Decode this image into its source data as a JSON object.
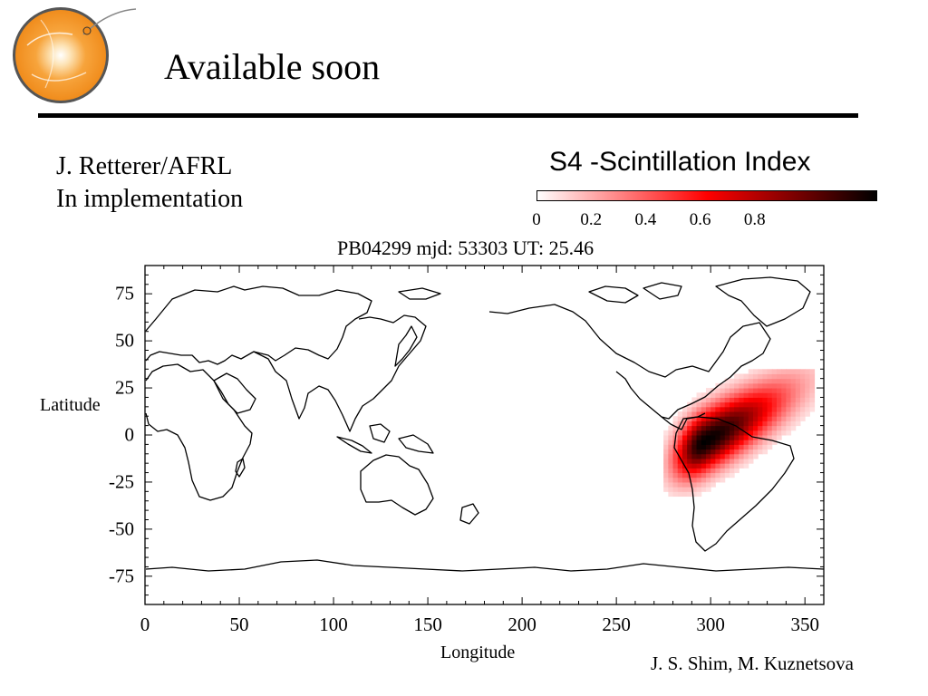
{
  "slide": {
    "title": "Available soon",
    "author_line1": "J. Retterer/AFRL",
    "author_line2": "In implementation",
    "credits": "J. S. Shim, M. Kuznetsova"
  },
  "colorbar": {
    "title": "S4 -Scintillation Index",
    "ticks": [
      "0",
      "0.2",
      "0.4",
      "0.6",
      "0.8"
    ],
    "range": [
      0,
      1
    ],
    "colormap": [
      "#ffffff",
      "#ff0000",
      "#000000"
    ]
  },
  "map": {
    "header": "PB04299  mjd: 53303  UT:  25.46",
    "xlabel": "Longitude",
    "ylabel": "Latitude",
    "xlim": [
      0,
      360
    ],
    "ylim": [
      -90,
      90
    ],
    "xticks": [
      "0",
      "50",
      "100",
      "150",
      "200",
      "250",
      "300",
      "350"
    ],
    "yticks": [
      "75",
      "50",
      "25",
      "0",
      "-25",
      "-50",
      "-75"
    ],
    "coastline_color": "#000000",
    "scintillation_patch": {
      "lon_range": [
        275,
        355
      ],
      "lat_range": [
        -35,
        35
      ],
      "peak_lon": 295,
      "peak_lat": -5,
      "peak_s4": 1.0
    }
  }
}
